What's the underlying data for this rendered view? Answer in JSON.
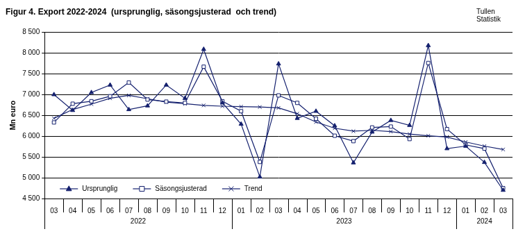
{
  "chart_data": {
    "type": "line",
    "title": "Figur 4. Export 2022-2024  (ursprunglig, säsongsjusterad  och trend)",
    "annotations": [
      "Tullen",
      "Statistik"
    ],
    "y_label": "Mn euro",
    "categories": [
      "03",
      "04",
      "05",
      "06",
      "07",
      "08",
      "09",
      "10",
      "11",
      "12",
      "01",
      "02",
      "03",
      "04",
      "05",
      "06",
      "07",
      "08",
      "09",
      "10",
      "11",
      "12",
      "01",
      "02",
      "03"
    ],
    "category_groups": [
      {
        "label": "2022",
        "size": 10
      },
      {
        "label": "2023",
        "size": 12
      },
      {
        "label": "2024",
        "size": 3
      }
    ],
    "series": [
      {
        "name": "Ursprunglig",
        "color": "#14206e",
        "marker": "triangle",
        "values": [
          7000,
          6620,
          7050,
          7230,
          6640,
          6730,
          7230,
          6910,
          8090,
          6800,
          6290,
          5020,
          7740,
          6430,
          6600,
          6250,
          5360,
          6100,
          6380,
          6260,
          8180,
          5700,
          5760,
          5370,
          4700
        ]
      },
      {
        "name": "Säsongsjusterad",
        "color": "#14206e",
        "marker": "square_open",
        "values": [
          6330,
          6780,
          6840,
          6960,
          7290,
          6880,
          6830,
          6800,
          7670,
          6840,
          6600,
          5380,
          6980,
          6800,
          6420,
          6010,
          5880,
          6210,
          6230,
          5930,
          7760,
          6170,
          5790,
          5700,
          4750
        ]
      },
      {
        "name": "Trend",
        "color": "#14206e",
        "marker": "x",
        "values": [
          6430,
          6640,
          6770,
          6910,
          6980,
          6900,
          6820,
          6780,
          6740,
          6720,
          6710,
          6700,
          6680,
          6540,
          6340,
          6190,
          6120,
          6140,
          6110,
          6050,
          6010,
          5980,
          5860,
          5760,
          5680
        ]
      }
    ],
    "ylim": [
      4500,
      8500
    ],
    "yticks": [
      {
        "value": 4500,
        "label": "4 500"
      },
      {
        "value": 5000,
        "label": "5 000"
      },
      {
        "value": 5500,
        "label": "5 500"
      },
      {
        "value": 6000,
        "label": "6 000"
      },
      {
        "value": 6500,
        "label": "6 500"
      },
      {
        "value": 7000,
        "label": "7 000"
      },
      {
        "value": 7500,
        "label": "7 500"
      },
      {
        "value": 8000,
        "label": "8 000"
      },
      {
        "value": 8500,
        "label": "8 500"
      }
    ],
    "grid": true,
    "legend": "lower left"
  }
}
